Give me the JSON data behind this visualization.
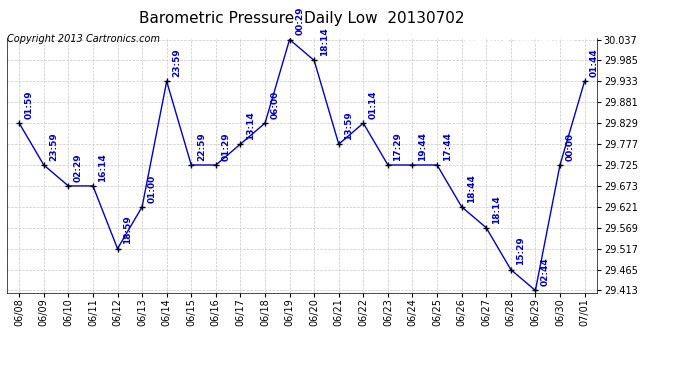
{
  "title": "Barometric Pressure  Daily Low  20130702",
  "copyright": "Copyright 2013 Cartronics.com",
  "x_labels": [
    "06/08",
    "06/09",
    "06/10",
    "06/11",
    "06/12",
    "06/13",
    "06/14",
    "06/15",
    "06/16",
    "06/17",
    "06/18",
    "06/19",
    "06/20",
    "06/21",
    "06/22",
    "06/23",
    "06/24",
    "06/25",
    "06/26",
    "06/27",
    "06/28",
    "06/29",
    "06/30",
    "07/01"
  ],
  "y_values": [
    29.829,
    29.725,
    29.673,
    29.673,
    29.517,
    29.621,
    29.933,
    29.725,
    29.725,
    29.777,
    29.829,
    30.037,
    29.985,
    29.777,
    29.829,
    29.725,
    29.725,
    29.725,
    29.621,
    29.569,
    29.465,
    29.413,
    29.725,
    29.933
  ],
  "point_labels": [
    "01:59",
    "23:59",
    "02:29",
    "16:14",
    "18:59",
    "01:00",
    "23:59",
    "22:59",
    "01:29",
    "13:14",
    "06:00",
    "00:29",
    "18:14",
    "13:59",
    "01:14",
    "17:29",
    "19:44",
    "17:44",
    "18:44",
    "18:14",
    "15:29",
    "02:44",
    "00:00",
    "01:44"
  ],
  "ylim_min": 29.413,
  "ylim_max": 30.037,
  "y_ticks": [
    29.413,
    29.465,
    29.517,
    29.569,
    29.621,
    29.673,
    29.725,
    29.777,
    29.829,
    29.881,
    29.933,
    29.985,
    30.037
  ],
  "line_color": "#0000cc",
  "marker_color": "#000000",
  "bg_color": "#ffffff",
  "grid_color": "#c8c8c8",
  "title_fontsize": 11,
  "label_fontsize": 7,
  "point_label_fontsize": 6.5,
  "copyright_fontsize": 7,
  "legend_bg": "#0000cc",
  "legend_fg": "#ffffff"
}
